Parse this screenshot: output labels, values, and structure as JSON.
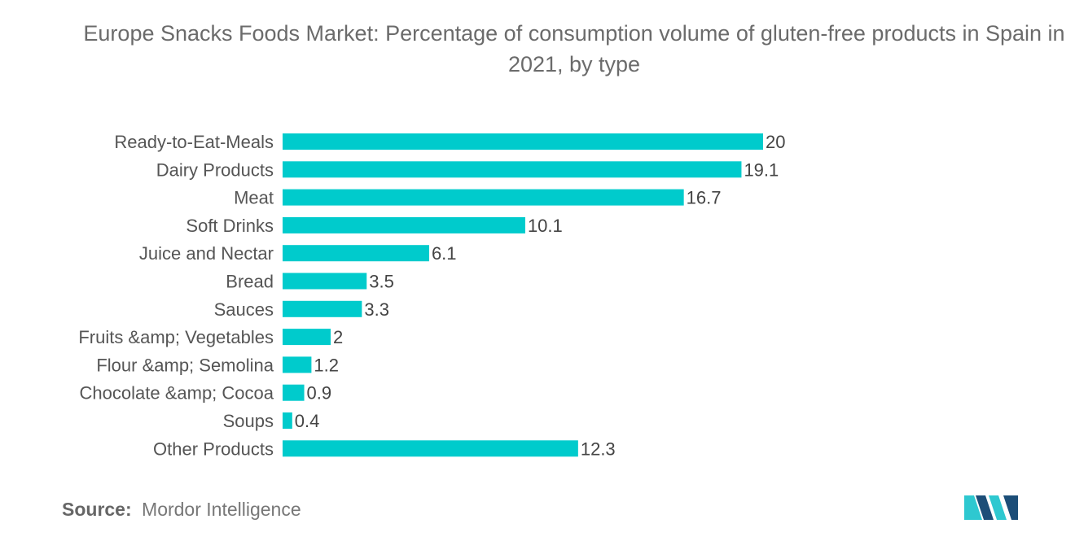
{
  "chart_data": {
    "type": "bar",
    "orientation": "horizontal",
    "title": "Europe Snacks Foods Market: Percentage of consumption volume of gluten-free products in Spain in 2021, by type",
    "categories": [
      "Ready-to-Eat-Meals",
      "Dairy Products",
      "Meat",
      "Soft Drinks",
      "Juice and Nectar",
      "Bread",
      "Sauces",
      "Fruits &amp; Vegetables",
      "Flour &amp; Semolina",
      "Chocolate &amp; Cocoa",
      "Soups",
      "Other Products"
    ],
    "values": [
      20,
      19.1,
      16.7,
      10.1,
      6.1,
      3.5,
      3.3,
      2,
      1.2,
      0.9,
      0.4,
      12.3
    ],
    "value_labels": [
      "20",
      "19.1",
      "16.7",
      "10.1",
      "6.1",
      "3.5",
      "3.3",
      "2",
      "1.2",
      "0.9",
      "0.4",
      "12.3"
    ],
    "xlim": [
      0,
      20
    ],
    "xlabel": "",
    "ylabel": "",
    "grid": false,
    "legend": "none",
    "bar_color": "#00cbcc"
  },
  "source": {
    "label": "Source:",
    "text": "Mordor Intelligence"
  },
  "logo": {
    "name": "mordor-intelligence-logo",
    "colors": [
      "#1c4e78",
      "#2ec8d0"
    ]
  }
}
